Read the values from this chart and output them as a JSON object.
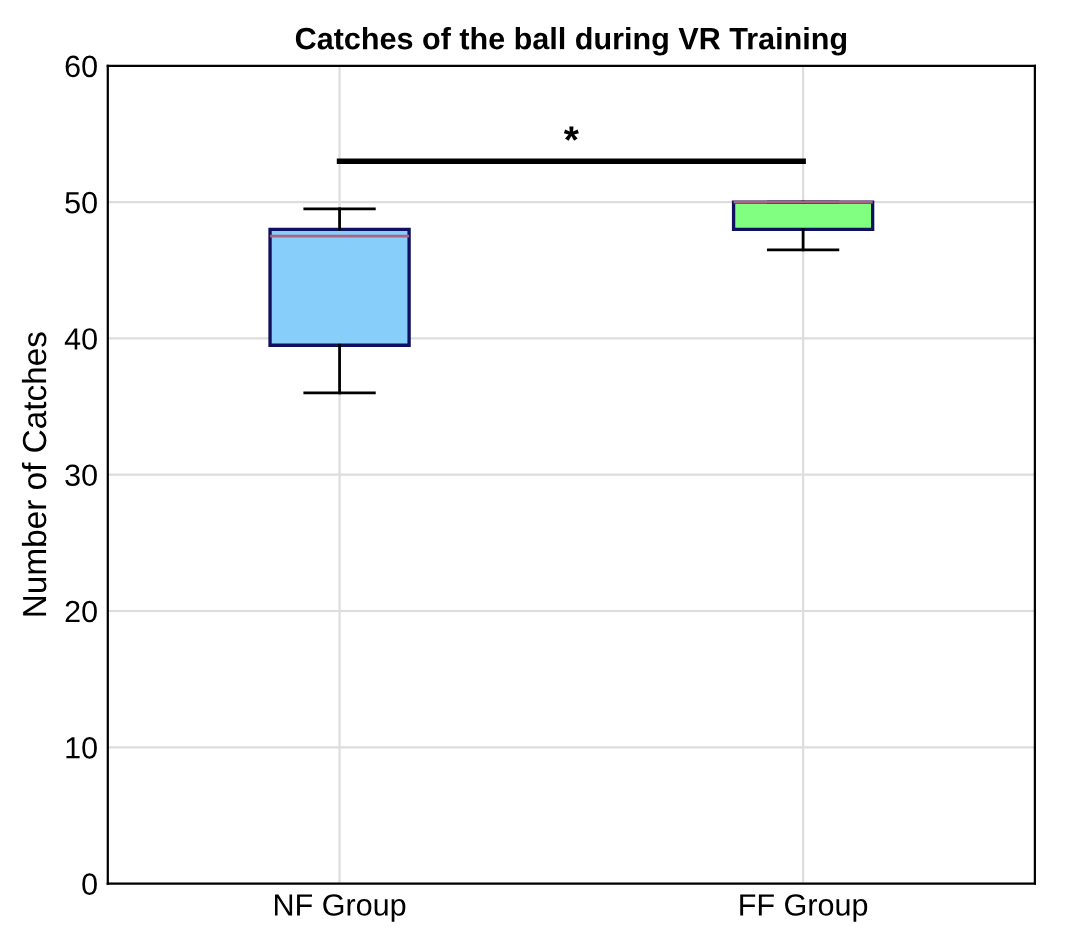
{
  "chart_data": {
    "type": "box",
    "title": "Catches of the ball during VR Training",
    "ylabel": "Number of Catches",
    "categories": [
      "NF Group",
      "FF Group"
    ],
    "boxes": [
      {
        "low": 36,
        "q1": 39.5,
        "median": 47.5,
        "q3": 48,
        "high": 49.5
      },
      {
        "low": 46.5,
        "q1": 48,
        "median": 50,
        "q3": 50,
        "high": 50
      }
    ],
    "colors": [
      "#87cefa",
      "#80ff80"
    ],
    "ylim": [
      0,
      60
    ],
    "yticks": [
      0,
      10,
      20,
      30,
      40,
      50,
      60
    ],
    "grid": true,
    "annotations": [
      "*"
    ]
  }
}
